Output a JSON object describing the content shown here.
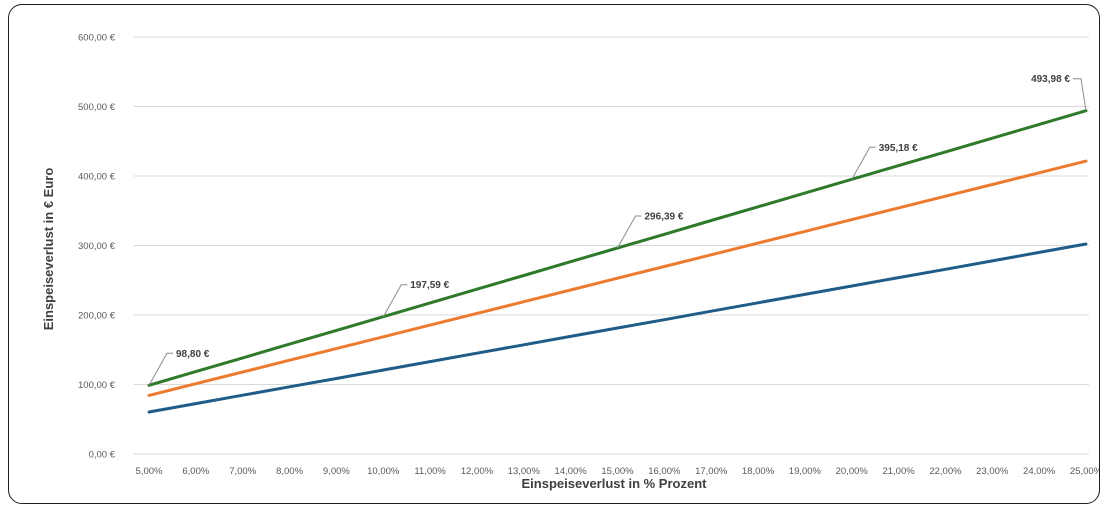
{
  "chart_data": {
    "type": "line",
    "title": "",
    "xlabel": "Einspeiseverlust in % Prozent",
    "ylabel": "Einspeiseverlust in € Euro",
    "categories": [
      "5,00%",
      "6,00%",
      "7,00%",
      "8,00%",
      "9,00%",
      "10,00%",
      "11,00%",
      "12,00%",
      "13,00%",
      "14,00%",
      "15,00%",
      "16,00%",
      "17,00%",
      "18,00%",
      "19,00%",
      "20,00%",
      "21,00%",
      "22,00%",
      "23,00%",
      "24,00%",
      "25,00%"
    ],
    "yticks": [
      "0,00 €",
      "100,00 €",
      "200,00 €",
      "300,00 €",
      "400,00 €",
      "500,00 €",
      "600,00 €"
    ],
    "ylim": [
      0,
      600
    ],
    "grid": true,
    "legend": "none",
    "series": [
      {
        "color": "#1f5c88",
        "values": [
          60.4,
          72.5,
          84.6,
          96.7,
          108.7,
          120.8,
          132.9,
          145.0,
          157.1,
          169.2,
          181.3,
          193.3,
          205.4,
          217.5,
          229.6,
          241.7,
          253.8,
          265.8,
          277.9,
          290.0,
          302.1
        ]
      },
      {
        "color": "#ed7a31",
        "values": [
          84.3,
          101.2,
          118.0,
          134.9,
          151.7,
          168.6,
          185.5,
          202.3,
          219.2,
          236.0,
          252.9,
          269.8,
          286.6,
          303.5,
          320.3,
          337.2,
          354.1,
          370.9,
          387.8,
          404.6,
          421.5
        ]
      },
      {
        "color": "#2e7a2a",
        "values": [
          98.8,
          118.56,
          138.32,
          158.08,
          177.83,
          197.59,
          217.35,
          237.11,
          256.87,
          276.63,
          296.39,
          316.15,
          335.91,
          355.67,
          375.43,
          395.18,
          414.94,
          434.7,
          454.46,
          474.22,
          493.98
        ],
        "labels": [
          {
            "index": 0,
            "text": "98,80 €"
          },
          {
            "index": 5,
            "text": "197,59 €"
          },
          {
            "index": 10,
            "text": "296,39 €"
          },
          {
            "index": 15,
            "text": "395,18 €"
          },
          {
            "index": 20,
            "text": "493,98 €"
          }
        ]
      }
    ],
    "gridline_color": "#d9d9d9"
  }
}
